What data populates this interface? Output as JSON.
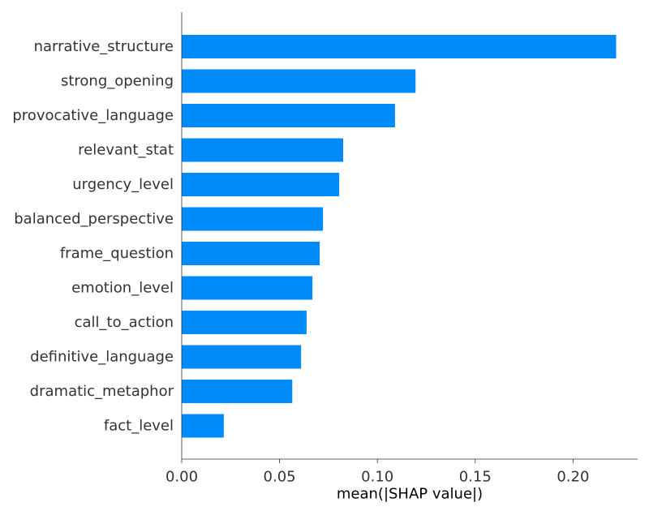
{
  "chart_data": {
    "type": "bar",
    "orientation": "horizontal",
    "categories": [
      "narrative_structure",
      "strong_opening",
      "provocative_language",
      "relevant_stat",
      "urgency_level",
      "balanced_perspective",
      "frame_question",
      "emotion_level",
      "call_to_action",
      "definitive_language",
      "dramatic_metaphor",
      "fact_level"
    ],
    "values": [
      0.222,
      0.1195,
      0.109,
      0.0825,
      0.0805,
      0.0722,
      0.0705,
      0.0668,
      0.0638,
      0.061,
      0.0565,
      0.0215
    ],
    "title": "",
    "xlabel": "mean(|SHAP value|)",
    "ylabel": "",
    "xlim": [
      0,
      0.233
    ],
    "xticks": [
      0.0,
      0.05,
      0.1,
      0.15,
      0.2
    ],
    "xtick_labels": [
      "0.00",
      "0.05",
      "0.10",
      "0.15",
      "0.20"
    ],
    "grid": false,
    "bar_color": "#008bfb",
    "axis_color": "#333333"
  }
}
